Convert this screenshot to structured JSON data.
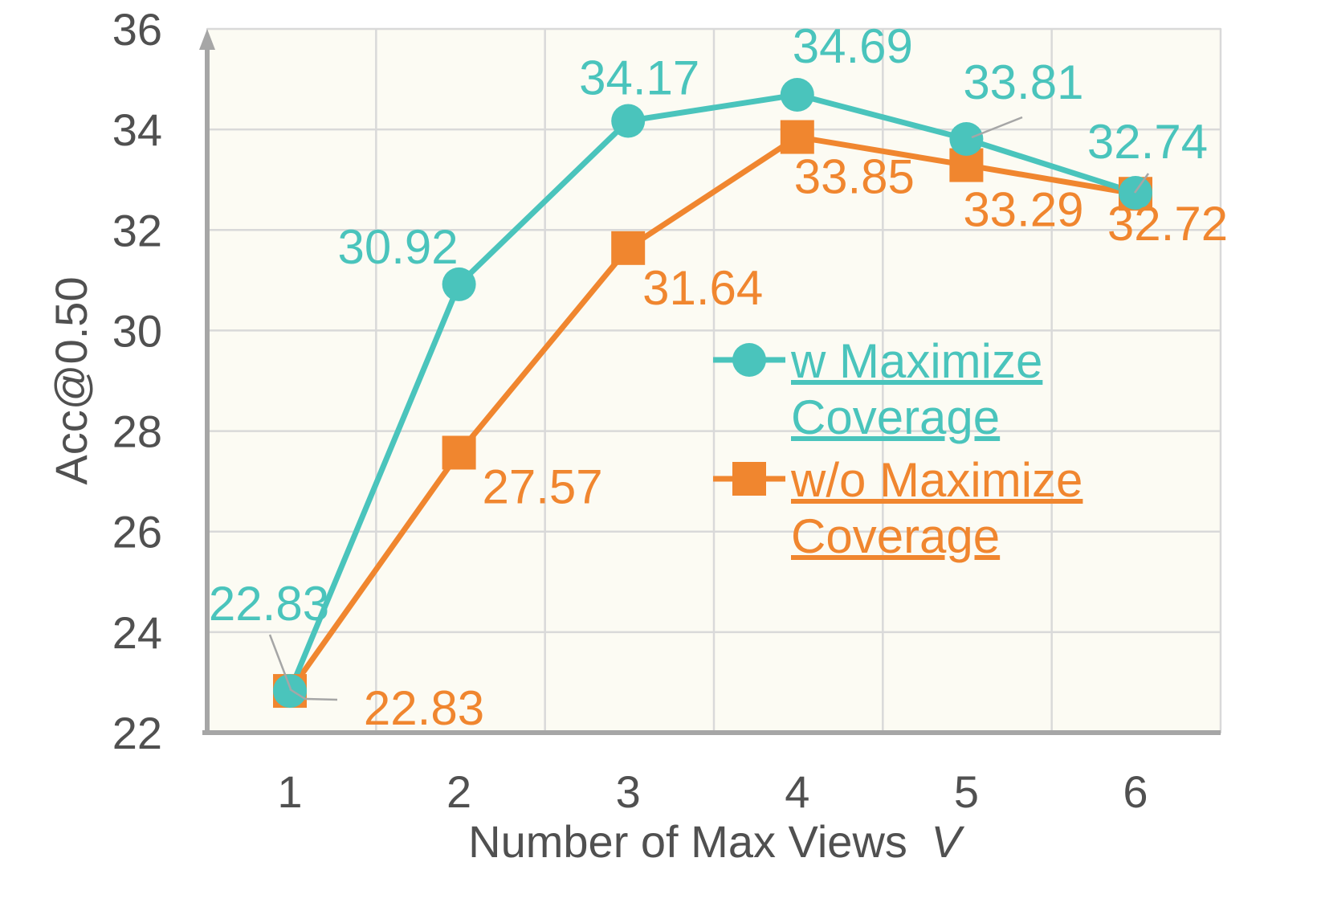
{
  "chart_data": {
    "type": "line",
    "title": "",
    "xlabel": "Number of Max Views",
    "xlabel_var": "V",
    "ylabel": "Acc@0.50",
    "x": [
      1,
      2,
      3,
      4,
      5,
      6
    ],
    "x_tick_labels": [
      "1",
      "2",
      "3",
      "4",
      "5",
      "6"
    ],
    "ylim": [
      22,
      36
    ],
    "y_ticks": [
      22,
      24,
      26,
      28,
      30,
      32,
      34,
      36
    ],
    "y_tick_labels": [
      "22",
      "24",
      "26",
      "28",
      "30",
      "32",
      "34",
      "36"
    ],
    "grid": true,
    "legend_position": "center-right",
    "series": [
      {
        "name_line1": "w Maximize",
        "name_line2": "Coverage",
        "marker": "circle",
        "color": "#4AC4BC",
        "values": [
          22.83,
          30.92,
          34.17,
          34.69,
          33.81,
          32.74
        ],
        "data_labels": [
          "22.83",
          "30.92",
          "34.17",
          "34.69",
          "33.81",
          "32.74"
        ]
      },
      {
        "name_line1": "w/o Maximize",
        "name_line2": "Coverage",
        "marker": "square",
        "color": "#F0862F",
        "values": [
          22.83,
          27.57,
          31.64,
          33.85,
          33.29,
          32.72
        ],
        "data_labels": [
          "22.83",
          "27.57",
          "31.64",
          "33.85",
          "33.29",
          "32.72"
        ]
      }
    ]
  },
  "style": {
    "plot_background": "#FCFBF3",
    "grid_color": "#D9D9D9",
    "axis_color": "#A6A6A6",
    "text_color": "#505050",
    "leader_line_color": "#A6A6A6"
  }
}
